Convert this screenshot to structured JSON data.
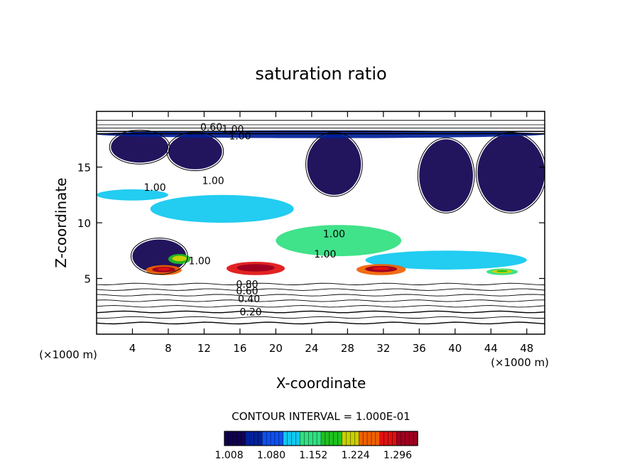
{
  "chart_data": {
    "type": "heatmap",
    "title": "saturation ratio",
    "xlabel": "X-coordinate",
    "ylabel": "Z-coordinate",
    "x_unit_left": "(×1000 m)",
    "x_unit_right": "(×1000 m)",
    "xlim": [
      0,
      50
    ],
    "ylim": [
      0,
      20
    ],
    "x_ticks": [
      4,
      8,
      12,
      16,
      20,
      24,
      28,
      32,
      36,
      40,
      44,
      48
    ],
    "y_ticks": [
      5,
      10,
      15
    ],
    "contour_interval_text": "CONTOUR INTERVAL = 1.000E-01",
    "colorbar": {
      "range": [
        1.0,
        1.33
      ],
      "ticks": [
        "1.008",
        "1.080",
        "1.152",
        "1.224",
        "1.296"
      ],
      "colors": [
        "#100050",
        "#00209a",
        "#1050f0",
        "#10c8f0",
        "#30e080",
        "#20c020",
        "#c8d000",
        "#f06000",
        "#e01010",
        "#a00020"
      ]
    },
    "contour_labels": [
      {
        "text": "0.60",
        "x": 12.8,
        "y": 18.6
      },
      {
        "text": "1.00",
        "x": 15.2,
        "y": 18.4
      },
      {
        "text": "1.00",
        "x": 16.0,
        "y": 17.8
      },
      {
        "text": "1.00",
        "x": 6.5,
        "y": 13.2
      },
      {
        "text": "1.00",
        "x": 13.0,
        "y": 13.8
      },
      {
        "text": "1.00",
        "x": 11.5,
        "y": 6.6
      },
      {
        "text": "1.00",
        "x": 26.5,
        "y": 9.0
      },
      {
        "text": "1.00",
        "x": 25.5,
        "y": 7.2
      },
      {
        "text": "0.80",
        "x": 16.8,
        "y": 4.5
      },
      {
        "text": "0.60",
        "x": 16.8,
        "y": 3.9
      },
      {
        "text": "0.40",
        "x": 17.0,
        "y": 3.2
      },
      {
        "text": "0.20",
        "x": 17.2,
        "y": 2.0
      }
    ],
    "supersaturated_regions": [
      {
        "x": [
          1.6,
          8.0
        ],
        "z": [
          15.4,
          18.2
        ],
        "level": 1.02
      },
      {
        "x": [
          8.0,
          14.0
        ],
        "z": [
          14.8,
          18.0
        ],
        "level": 1.02
      },
      {
        "x": [
          23.5,
          29.5
        ],
        "z": [
          12.5,
          18.0
        ],
        "level": 1.02
      },
      {
        "x": [
          36.0,
          42.0
        ],
        "z": [
          11.0,
          17.5
        ],
        "level": 1.02
      },
      {
        "x": [
          42.5,
          50.0
        ],
        "z": [
          11.0,
          18.0
        ],
        "level": 1.03
      },
      {
        "x": [
          4.0,
          10.0
        ],
        "z": [
          5.5,
          8.5
        ],
        "level": 1.02
      },
      {
        "x": [
          0.0,
          50.0
        ],
        "z": [
          17.6,
          18.3
        ],
        "level": 1.06
      },
      {
        "x": [
          0.0,
          8.0
        ],
        "z": [
          12.0,
          13.0
        ],
        "level": 1.1
      },
      {
        "x": [
          6.0,
          22.0
        ],
        "z": [
          10.0,
          12.5
        ],
        "level": 1.12
      },
      {
        "x": [
          20.0,
          34.0
        ],
        "z": [
          7.0,
          9.8
        ],
        "level": 1.14
      },
      {
        "x": [
          30.0,
          48.0
        ],
        "z": [
          5.8,
          7.5
        ],
        "level": 1.1
      },
      {
        "x": [
          5.5,
          9.5
        ],
        "z": [
          5.3,
          6.2
        ],
        "level": 1.26
      },
      {
        "x": [
          8.0,
          10.5
        ],
        "z": [
          6.3,
          7.2
        ],
        "level": 1.18
      },
      {
        "x": [
          14.5,
          21.0
        ],
        "z": [
          5.3,
          6.5
        ],
        "level": 1.29
      },
      {
        "x": [
          29.0,
          34.5
        ],
        "z": [
          5.3,
          6.3
        ],
        "level": 1.25
      },
      {
        "x": [
          43.5,
          47.0
        ],
        "z": [
          5.3,
          5.9
        ],
        "level": 1.16
      }
    ],
    "subsaturated_contours": [
      0.2,
      0.3,
      0.4,
      0.5,
      0.6,
      0.7,
      0.8,
      0.9
    ]
  }
}
